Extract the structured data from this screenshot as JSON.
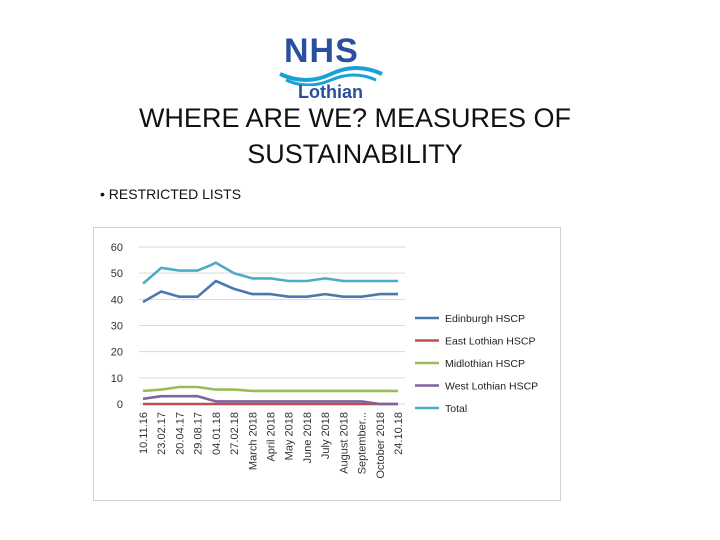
{
  "logo": {
    "brand": "NHS",
    "sub": "Lothian"
  },
  "title": "WHERE ARE WE? MEASURES OF SUSTAINABILITY",
  "bullet": "RESTRICTED LISTS",
  "colors": {
    "edinburgh": "#4a78b0",
    "east_lothian": "#c0504d",
    "midlothian": "#9bbb59",
    "west_lothian": "#8064a2",
    "total": "#4bacc6"
  },
  "chart_data": {
    "type": "line",
    "categories": [
      "10.11.16",
      "23.02.17",
      "20.04.17",
      "29.08.17",
      "04.01.18",
      "27.02.18",
      "March 2018",
      "April 2018",
      "May 2018",
      "June 2018",
      "July 2018",
      "August 2018",
      "September...",
      "October 2018",
      "24.10.18"
    ],
    "ylim": [
      0,
      60
    ],
    "yticks": [
      "0",
      "10",
      "20",
      "30",
      "40",
      "50",
      "60"
    ],
    "grid": true,
    "legend_position": "right",
    "series": [
      {
        "name": "Edinburgh HSCP",
        "color": "#4a78b0",
        "points": [
          [
            0,
            39
          ],
          [
            1,
            43
          ],
          [
            2,
            41
          ],
          [
            3,
            41
          ],
          [
            4,
            47
          ],
          [
            5,
            44
          ],
          [
            6,
            42
          ],
          [
            7,
            42
          ],
          [
            8,
            41
          ],
          [
            9,
            41
          ],
          [
            10,
            42
          ],
          [
            11,
            41
          ],
          [
            12,
            41
          ],
          [
            13,
            42
          ],
          [
            14,
            42
          ]
        ]
      },
      {
        "name": "East Lothian HSCP",
        "color": "#c0504d",
        "points": [
          [
            0,
            0
          ],
          [
            1,
            0
          ],
          [
            2,
            0
          ],
          [
            3,
            0
          ],
          [
            4,
            0
          ],
          [
            5,
            0
          ],
          [
            6,
            0
          ],
          [
            7,
            0
          ],
          [
            8,
            0
          ],
          [
            9,
            0
          ],
          [
            10,
            0
          ],
          [
            11,
            0
          ],
          [
            12,
            0
          ],
          [
            13,
            0
          ],
          [
            14,
            0
          ]
        ]
      },
      {
        "name": "Midlothian HSCP",
        "color": "#9bbb59",
        "points": [
          [
            0,
            5
          ],
          [
            1,
            5.5
          ],
          [
            2,
            6.5
          ],
          [
            3,
            6.5
          ],
          [
            4,
            5.5
          ],
          [
            5,
            5.5
          ],
          [
            6,
            5
          ],
          [
            7,
            5
          ],
          [
            8,
            5
          ],
          [
            9,
            5
          ],
          [
            10,
            5
          ],
          [
            11,
            5
          ],
          [
            12,
            5
          ],
          [
            13,
            5
          ],
          [
            14,
            5
          ]
        ]
      },
      {
        "name": "West Lothian HSCP",
        "color": "#8064a2",
        "points": [
          [
            0,
            2
          ],
          [
            1,
            3
          ],
          [
            2,
            3
          ],
          [
            3,
            3
          ],
          [
            4,
            1
          ],
          [
            5,
            1
          ],
          [
            6,
            1
          ],
          [
            7,
            1
          ],
          [
            8,
            1
          ],
          [
            9,
            1
          ],
          [
            10,
            1
          ],
          [
            11,
            1
          ],
          [
            12,
            1
          ],
          [
            13,
            0
          ],
          [
            14,
            0
          ]
        ]
      },
      {
        "name": "Total",
        "color": "#4bacc6",
        "points": [
          [
            0,
            46
          ],
          [
            0.5,
            49
          ],
          [
            1,
            52
          ],
          [
            1.5,
            51.5
          ],
          [
            2,
            51
          ],
          [
            3,
            51
          ],
          [
            3.7,
            53
          ],
          [
            4,
            54
          ],
          [
            5,
            50
          ],
          [
            6,
            48
          ],
          [
            7,
            48
          ],
          [
            8,
            47
          ],
          [
            9,
            47
          ],
          [
            10,
            48
          ],
          [
            11,
            47
          ],
          [
            12,
            47
          ],
          [
            13,
            47
          ],
          [
            14,
            47
          ]
        ]
      }
    ]
  }
}
